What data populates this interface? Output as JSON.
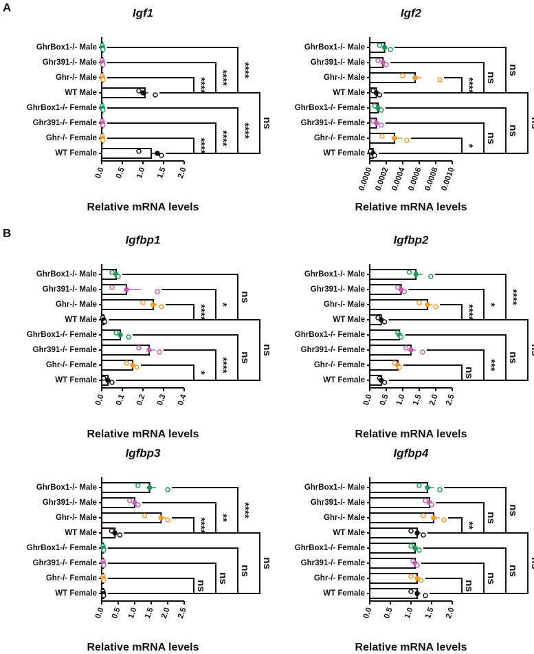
{
  "panels": [
    "A",
    "B"
  ],
  "chart_data": [
    {
      "type": "bar",
      "title": "Igf1",
      "xlabel": "Relative mRNA levels",
      "categories": [
        "GhrBox1-/- Male",
        "Ghr391-/- Male",
        "Ghr-/- Male",
        "WT Male",
        "GhrBox1-/- Female",
        "Ghr391-/- Female",
        "Ghr-/- Female",
        "WT Female"
      ],
      "colors": [
        "#1e9a5a",
        "#c45fb0",
        "#ef9a2e",
        "#111111",
        "#1e9a5a",
        "#c45fb0",
        "#ef9a2e",
        "#111111"
      ],
      "values": [
        0.02,
        0.02,
        0.02,
        1.05,
        0.02,
        0.02,
        0.02,
        1.2
      ],
      "errors": [
        0.01,
        0.01,
        0.01,
        0.08,
        0.01,
        0.01,
        0.01,
        0.15
      ],
      "points": [
        [
          0.01,
          0.02,
          0.03
        ],
        [
          0.01,
          0.02,
          0.03
        ],
        [
          0.01,
          0.02,
          0.03
        ],
        [
          0.9,
          1.0,
          1.3
        ],
        [
          0.01,
          0.02,
          0.03
        ],
        [
          0.01,
          0.02,
          0.03
        ],
        [
          0.01,
          0.02,
          0.03
        ],
        [
          0.9,
          1.35,
          1.45
        ]
      ],
      "xlim": [
        0,
        2
      ],
      "xticks": [
        {
          "value": 0,
          "label": "0.0"
        },
        {
          "value": 0.5,
          "label": "0.5"
        },
        {
          "value": 1,
          "label": "1.0"
        },
        {
          "value": 1.5,
          "label": "1.5"
        },
        {
          "value": 2,
          "label": "2.0"
        }
      ],
      "brackets": [
        {
          "rows": [
            2,
            3
          ],
          "label": "****"
        },
        {
          "rows": [
            1,
            3
          ],
          "label": "****"
        },
        {
          "rows": [
            0,
            3
          ],
          "label": "****"
        },
        {
          "rows": [
            6,
            7
          ],
          "label": "****"
        },
        {
          "rows": [
            5,
            7
          ],
          "label": "****"
        },
        {
          "rows": [
            4,
            7
          ],
          "label": "****"
        },
        {
          "rows": [
            3,
            7
          ],
          "label": "ns"
        }
      ]
    },
    {
      "type": "bar",
      "title": "Igf2",
      "xlabel": "Relative mRNA levels",
      "categories": [
        "GhrBox1-/- Male",
        "Ghr391-/- Male",
        "Ghr-/- Male",
        "WT Male",
        "GhrBox1-/- Female",
        "Ghr391-/- Female",
        "Ghr-/- Female",
        "WT Female"
      ],
      "colors": [
        "#1e9a5a",
        "#c45fb0",
        "#ef9a2e",
        "#111111",
        "#1e9a5a",
        "#c45fb0",
        "#ef9a2e",
        "#111111"
      ],
      "values": [
        0.00018,
        0.00016,
        0.00055,
        8e-05,
        0.0001,
        8e-05,
        0.0003,
        4e-05
      ],
      "errors": [
        3e-05,
        3e-05,
        8e-05,
        2e-05,
        2e-05,
        3e-05,
        0.0001,
        1e-05
      ],
      "points": [
        [
          0.00012,
          0.00018,
          0.00025
        ],
        [
          0.0001,
          0.00016,
          0.0002
        ],
        [
          0.0004,
          0.00055,
          0.00085
        ],
        [
          4e-05,
          8e-05,
          0.00012
        ],
        [
          6e-05,
          0.0001,
          0.00014
        ],
        [
          4e-05,
          8e-05,
          0.00014
        ],
        [
          0.00015,
          0.0003,
          0.00045
        ],
        [
          1e-05,
          4e-05,
          6e-05
        ]
      ],
      "xlim": [
        0,
        0.001
      ],
      "xticks": [
        {
          "value": 0,
          "label": "0.0000"
        },
        {
          "value": 0.0002,
          "label": "0.0002"
        },
        {
          "value": 0.0004,
          "label": "0.0004"
        },
        {
          "value": 0.0006,
          "label": "0.0006"
        },
        {
          "value": 0.0008,
          "label": "0.0008"
        },
        {
          "value": 0.001,
          "label": "0.0010"
        }
      ],
      "brackets": [
        {
          "rows": [
            2,
            3
          ],
          "label": "****"
        },
        {
          "rows": [
            1,
            3
          ],
          "label": "ns"
        },
        {
          "rows": [
            0,
            3
          ],
          "label": "ns"
        },
        {
          "rows": [
            6,
            7
          ],
          "label": "*"
        },
        {
          "rows": [
            5,
            7
          ],
          "label": "ns"
        },
        {
          "rows": [
            4,
            7
          ],
          "label": "ns"
        },
        {
          "rows": [
            3,
            7
          ],
          "label": "ns"
        }
      ]
    },
    {
      "type": "bar",
      "title": "Igfbp1",
      "xlabel": "Relative mRNA levels",
      "categories": [
        "GhrBox1-/- Male",
        "Ghr391-/- Male",
        "Ghr-/- Male",
        "WT Male",
        "GhrBox1-/- Female",
        "Ghr391-/- Female",
        "Ghr-/- Female",
        "WT Female"
      ],
      "colors": [
        "#1e9a5a",
        "#c45fb0",
        "#ef9a2e",
        "#111111",
        "#1e9a5a",
        "#c45fb0",
        "#ef9a2e",
        "#111111"
      ],
      "values": [
        0.07,
        0.12,
        0.25,
        0.01,
        0.09,
        0.23,
        0.15,
        0.03
      ],
      "errors": [
        0.01,
        0.07,
        0.02,
        0.003,
        0.01,
        0.03,
        0.01,
        0.01
      ],
      "points": [
        [
          0.05,
          0.07,
          0.08
        ],
        [
          0.05,
          0.12,
          0.27
        ],
        [
          0.2,
          0.25,
          0.29
        ],
        [
          0.005,
          0.01,
          0.015
        ],
        [
          0.07,
          0.09,
          0.13
        ],
        [
          0.18,
          0.23,
          0.28
        ],
        [
          0.12,
          0.15,
          0.17
        ],
        [
          0.01,
          0.03,
          0.05
        ]
      ],
      "xlim": [
        0,
        0.4
      ],
      "xticks": [
        {
          "value": 0,
          "label": "0.0"
        },
        {
          "value": 0.1,
          "label": "0.1"
        },
        {
          "value": 0.2,
          "label": "0.2"
        },
        {
          "value": 0.3,
          "label": "0.3"
        },
        {
          "value": 0.4,
          "label": "0.4"
        }
      ],
      "brackets": [
        {
          "rows": [
            2,
            3
          ],
          "label": "****"
        },
        {
          "rows": [
            1,
            3
          ],
          "label": "*"
        },
        {
          "rows": [
            0,
            3
          ],
          "label": "ns"
        },
        {
          "rows": [
            6,
            7
          ],
          "label": "*"
        },
        {
          "rows": [
            5,
            7
          ],
          "label": "****"
        },
        {
          "rows": [
            4,
            7
          ],
          "label": "ns"
        },
        {
          "rows": [
            3,
            7
          ],
          "label": "ns"
        }
      ]
    },
    {
      "type": "bar",
      "title": "Igfbp2",
      "xlabel": "Relative mRNA levels",
      "categories": [
        "GhrBox1-/- Male",
        "Ghr391-/- Male",
        "Ghr-/- Male",
        "WT Male",
        "GhrBox1-/- Female",
        "Ghr391-/- Female",
        "Ghr-/- Female",
        "WT Female"
      ],
      "colors": [
        "#1e9a5a",
        "#c45fb0",
        "#ef9a2e",
        "#111111",
        "#1e9a5a",
        "#c45fb0",
        "#ef9a2e",
        "#111111"
      ],
      "values": [
        1.4,
        0.95,
        1.75,
        0.35,
        0.9,
        1.25,
        0.85,
        0.35
      ],
      "errors": [
        0.2,
        0.05,
        0.15,
        0.05,
        0.02,
        0.15,
        0.04,
        0.04
      ],
      "points": [
        [
          1.2,
          1.4,
          1.85
        ],
        [
          0.85,
          0.95,
          1.05
        ],
        [
          1.5,
          1.75,
          2.0
        ],
        [
          0.25,
          0.35,
          0.45
        ],
        [
          0.85,
          0.9,
          0.95
        ],
        [
          1.1,
          1.25,
          1.6
        ],
        [
          0.75,
          0.85,
          0.9
        ],
        [
          0.3,
          0.35,
          0.45
        ]
      ],
      "xlim": [
        0,
        2.5
      ],
      "xticks": [
        {
          "value": 0,
          "label": "0.0"
        },
        {
          "value": 0.5,
          "label": "0.5"
        },
        {
          "value": 1,
          "label": "1.0"
        },
        {
          "value": 1.5,
          "label": "1.5"
        },
        {
          "value": 2,
          "label": "2.0"
        },
        {
          "value": 2.5,
          "label": "2.5"
        }
      ],
      "brackets": [
        {
          "rows": [
            2,
            3
          ],
          "label": "****"
        },
        {
          "rows": [
            1,
            3
          ],
          "label": "*"
        },
        {
          "rows": [
            0,
            3
          ],
          "label": "****"
        },
        {
          "rows": [
            6,
            7
          ],
          "label": "ns"
        },
        {
          "rows": [
            5,
            7
          ],
          "label": "***"
        },
        {
          "rows": [
            4,
            7
          ],
          "label": "ns"
        },
        {
          "rows": [
            3,
            7
          ],
          "label": "ns"
        }
      ]
    },
    {
      "type": "bar",
      "title": "Igfbp3",
      "xlabel": "Relative mRNA levels",
      "categories": [
        "GhrBox1-/- Male",
        "Ghr391-/- Male",
        "Ghr-/- Male",
        "WT Male",
        "GhrBox1-/- Female",
        "Ghr391-/- Female",
        "Ghr-/- Female",
        "WT Female"
      ],
      "colors": [
        "#1e9a5a",
        "#c45fb0",
        "#ef9a2e",
        "#111111",
        "#1e9a5a",
        "#c45fb0",
        "#ef9a2e",
        "#111111"
      ],
      "values": [
        1.45,
        1.0,
        1.8,
        0.4,
        0.05,
        0.05,
        0.05,
        0.05
      ],
      "errors": [
        0.2,
        0.07,
        0.15,
        0.08,
        0.01,
        0.01,
        0.01,
        0.01
      ],
      "points": [
        [
          1.1,
          1.45,
          2.0
        ],
        [
          0.85,
          1.0,
          1.1
        ],
        [
          1.3,
          1.8,
          2.0
        ],
        [
          0.3,
          0.4,
          0.55
        ],
        [
          0.04,
          0.05,
          0.06
        ],
        [
          0.04,
          0.05,
          0.06
        ],
        [
          0.04,
          0.05,
          0.06
        ],
        [
          0.04,
          0.05,
          0.06
        ]
      ],
      "xlim": [
        0,
        2.5
      ],
      "xticks": [
        {
          "value": 0,
          "label": "0.0"
        },
        {
          "value": 0.5,
          "label": "0.5"
        },
        {
          "value": 1,
          "label": "1.0"
        },
        {
          "value": 1.5,
          "label": "1.5"
        },
        {
          "value": 2,
          "label": "2.0"
        },
        {
          "value": 2.5,
          "label": "2.5"
        }
      ],
      "brackets": [
        {
          "rows": [
            2,
            3
          ],
          "label": "****"
        },
        {
          "rows": [
            1,
            3
          ],
          "label": "**"
        },
        {
          "rows": [
            0,
            3
          ],
          "label": "****"
        },
        {
          "rows": [
            6,
            7
          ],
          "label": "ns"
        },
        {
          "rows": [
            5,
            7
          ],
          "label": "ns"
        },
        {
          "rows": [
            4,
            7
          ],
          "label": "ns"
        },
        {
          "rows": [
            3,
            7
          ],
          "label": "ns"
        }
      ]
    },
    {
      "type": "bar",
      "title": "Igfbp4",
      "xlabel": "Relative mRNA levels",
      "categories": [
        "GhrBox1-/- Male",
        "Ghr391-/- Male",
        "Ghr-/- Male",
        "WT Male",
        "GhrBox1-/- Female",
        "Ghr391-/- Female",
        "Ghr-/- Female",
        "WT Female"
      ],
      "colors": [
        "#1e9a5a",
        "#c45fb0",
        "#ef9a2e",
        "#111111",
        "#1e9a5a",
        "#c45fb0",
        "#ef9a2e",
        "#111111"
      ],
      "values": [
        1.4,
        1.45,
        1.55,
        1.15,
        1.1,
        1.1,
        1.15,
        1.15
      ],
      "errors": [
        0.15,
        0.04,
        0.15,
        0.08,
        0.05,
        0.03,
        0.06,
        0.08
      ],
      "points": [
        [
          1.2,
          1.4,
          1.7
        ],
        [
          1.35,
          1.45,
          1.5
        ],
        [
          1.3,
          1.55,
          1.8
        ],
        [
          1.0,
          1.15,
          1.3
        ],
        [
          1.0,
          1.1,
          1.2
        ],
        [
          1.05,
          1.1,
          1.15
        ],
        [
          1.0,
          1.15,
          1.25
        ],
        [
          1.0,
          1.15,
          1.35
        ]
      ],
      "xlim": [
        0,
        2
      ],
      "xticks": [
        {
          "value": 0,
          "label": "0.0"
        },
        {
          "value": 0.5,
          "label": "0.5"
        },
        {
          "value": 1,
          "label": "1.0"
        },
        {
          "value": 1.5,
          "label": "1.5"
        },
        {
          "value": 2,
          "label": "2.0"
        }
      ],
      "brackets": [
        {
          "rows": [
            2,
            3
          ],
          "label": "**"
        },
        {
          "rows": [
            1,
            3
          ],
          "label": "ns"
        },
        {
          "rows": [
            0,
            3
          ],
          "label": "ns"
        },
        {
          "rows": [
            6,
            7
          ],
          "label": "ns"
        },
        {
          "rows": [
            5,
            7
          ],
          "label": "ns"
        },
        {
          "rows": [
            4,
            7
          ],
          "label": "ns"
        },
        {
          "rows": [
            3,
            7
          ],
          "label": "ns"
        }
      ]
    }
  ]
}
